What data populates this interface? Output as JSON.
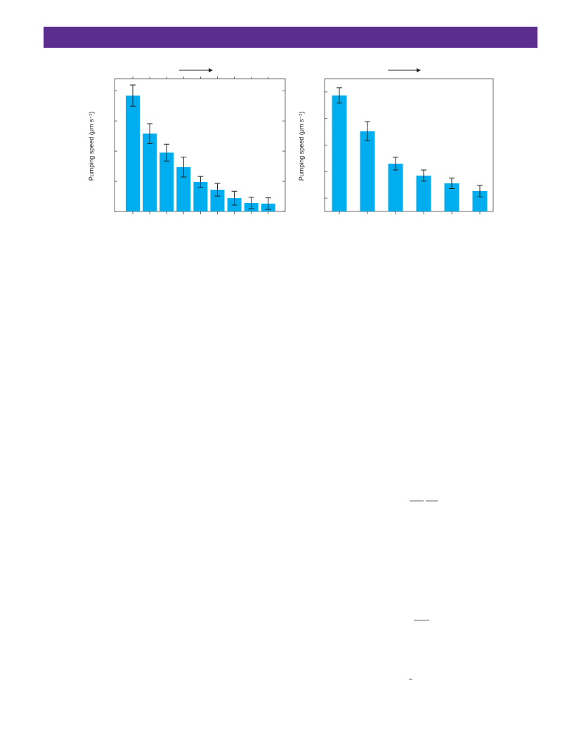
{
  "chart_data": [
    {
      "type": "bar",
      "y_label": "Pumping speed (μm s⁻¹)",
      "color": "#00aeef",
      "categories": [
        null,
        null,
        null,
        null,
        null,
        null,
        null,
        null,
        null
      ],
      "values": [
        3.84,
        2.58,
        1.95,
        1.47,
        0.98,
        0.72,
        0.44,
        0.28,
        0.26
      ],
      "errors": [
        0.35,
        0.33,
        0.28,
        0.33,
        0.18,
        0.21,
        0.23,
        0.19,
        0.19
      ],
      "ylim": [
        0,
        4.4
      ],
      "yticks": [
        0,
        1,
        2,
        3,
        4
      ]
    },
    {
      "type": "bar",
      "y_label": "Pumping speed (μm s⁻¹)",
      "color": "#00aeef",
      "categories": [
        null,
        null,
        null,
        null,
        null,
        null
      ],
      "values": [
        4.37,
        3.02,
        1.8,
        1.35,
        1.06,
        0.77
      ],
      "errors": [
        0.29,
        0.36,
        0.24,
        0.21,
        0.2,
        0.22
      ],
      "ylim": [
        0,
        5
      ],
      "yticks": [
        0.5,
        1.5,
        2.5,
        3.5,
        4.5
      ]
    }
  ]
}
